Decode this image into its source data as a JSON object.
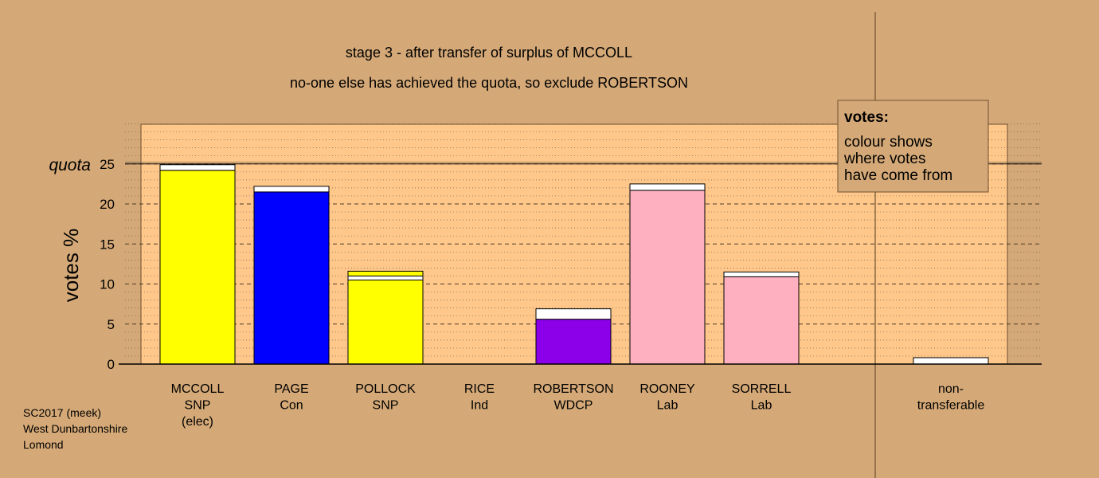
{
  "chart_data": {
    "type": "bar",
    "title": "stage 3 - after transfer of surplus of MCCOLL",
    "subtitle": "no-one else has achieved the quota, so exclude ROBERTSON",
    "ylabel": "votes %",
    "ylim": [
      0,
      30
    ],
    "yticks": [
      0,
      5,
      10,
      15,
      20,
      25
    ],
    "quota": 25,
    "quota_label": "quota",
    "grid": true,
    "candidates": [
      {
        "name": "MCCOLL",
        "lines": [
          "MCCOLL",
          "SNP",
          "(elec)"
        ],
        "color": "#ffff00",
        "segments": [
          {
            "value": 24.2,
            "color": "#ffff00"
          },
          {
            "value": 0.7,
            "color": "#ffffff"
          }
        ]
      },
      {
        "name": "PAGE",
        "lines": [
          "PAGE",
          "Con"
        ],
        "color": "#0000ff",
        "segments": [
          {
            "value": 21.5,
            "color": "#0000ff"
          },
          {
            "value": 0.7,
            "color": "#ffffff"
          }
        ]
      },
      {
        "name": "POLLOCK",
        "lines": [
          "POLLOCK",
          "SNP"
        ],
        "color": "#ffff00",
        "segments": [
          {
            "value": 10.5,
            "color": "#ffff00"
          },
          {
            "value": 0.5,
            "color": "#ffffff"
          },
          {
            "value": 0.6,
            "color": "#ffff00"
          }
        ]
      },
      {
        "name": "RICE",
        "lines": [
          "RICE",
          "Ind"
        ],
        "color": "#ffffff",
        "segments": []
      },
      {
        "name": "ROBERTSON",
        "lines": [
          "ROBERTSON",
          "WDCP"
        ],
        "color": "#8b00e8",
        "segments": [
          {
            "value": 5.6,
            "color": "#8b00e8"
          },
          {
            "value": 1.3,
            "color": "#ffffff"
          }
        ]
      },
      {
        "name": "ROONEY",
        "lines": [
          "ROONEY",
          "Lab"
        ],
        "color": "#ffb0c0",
        "segments": [
          {
            "value": 21.7,
            "color": "#ffb0c0"
          },
          {
            "value": 0.8,
            "color": "#ffffff"
          }
        ]
      },
      {
        "name": "SORRELL",
        "lines": [
          "SORRELL",
          "Lab"
        ],
        "color": "#ffb0c0",
        "segments": [
          {
            "value": 10.9,
            "color": "#ffb0c0"
          },
          {
            "value": 0.6,
            "color": "#ffffff"
          }
        ]
      }
    ],
    "nontransferable": {
      "lines": [
        "non-",
        "transferable"
      ],
      "value": 0.8,
      "color": "#ffffff"
    },
    "legend": {
      "title": "votes:",
      "lines": [
        "colour shows",
        "where votes",
        "have come from"
      ],
      "placement": "top-right"
    }
  },
  "footnote": [
    "SC2017 (meek)",
    "West Dunbartonshire",
    "Lomond"
  ],
  "colors": {
    "background": "#d5a977",
    "plot_area": "#ffc88a",
    "legend_box": "#d5a977"
  }
}
